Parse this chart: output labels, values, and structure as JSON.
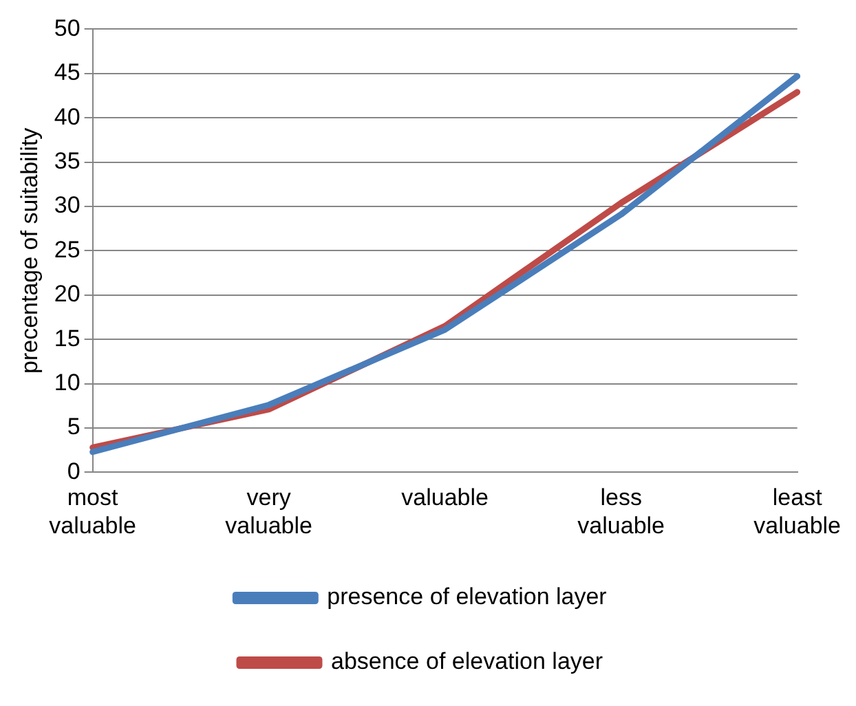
{
  "chart_data": {
    "type": "line",
    "ylabel": "precentage of suitability",
    "categories": [
      "most valuable",
      "very valuable",
      "valuable",
      "less valuable",
      "least valuable"
    ],
    "series": [
      {
        "name": "presence of elevation layer",
        "color": "#4a7ebb",
        "values": [
          2.3,
          7.6,
          16.1,
          29.1,
          44.7
        ]
      },
      {
        "name": "absence of elevation layer",
        "color": "#be4b48",
        "values": [
          2.8,
          7.1,
          16.5,
          30.4,
          42.9
        ]
      }
    ],
    "ylim": [
      0,
      50
    ],
    "yticks": [
      0,
      5,
      10,
      15,
      20,
      25,
      30,
      35,
      40,
      45,
      50
    ],
    "grid": "y",
    "legend": "bottom",
    "marker": "none",
    "line_style": "solid"
  }
}
